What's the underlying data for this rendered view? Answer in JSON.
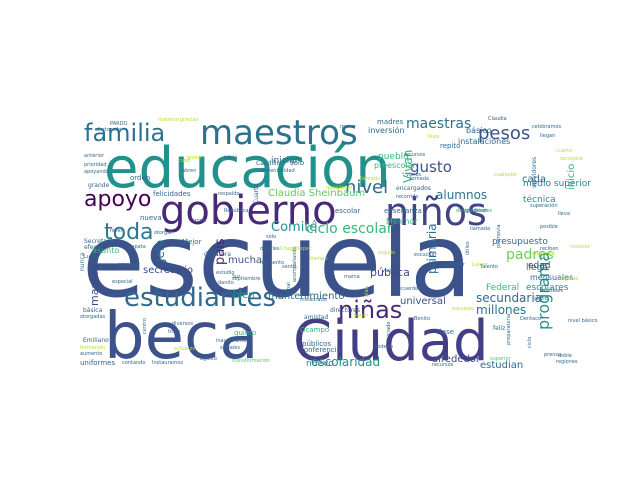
{
  "colors": {
    "background": "#ffffff",
    "palette": [
      "#440154",
      "#482878",
      "#3e4989",
      "#31688e",
      "#26828e",
      "#1f9e89",
      "#35b779",
      "#6ece58",
      "#b5de2b",
      "#fde725"
    ]
  },
  "words": [
    {
      "text": "escuela",
      "color": "#3b528b"
    },
    {
      "text": "educación",
      "color": "#21918c"
    },
    {
      "text": "beca",
      "color": "#3b528b"
    },
    {
      "text": "Ciudad",
      "color": "#433e85"
    },
    {
      "text": "maestros",
      "color": "#2c728e"
    },
    {
      "text": "gobierno",
      "color": "#482878"
    },
    {
      "text": "niños",
      "color": "#414487"
    },
    {
      "text": "estudiantes",
      "color": "#31688e"
    },
    {
      "text": "familia",
      "color": "#2c728e"
    },
    {
      "text": "apoyo",
      "color": "#440154"
    },
    {
      "text": "toda",
      "color": "#2a788e"
    },
    {
      "text": "niñas",
      "color": "#482878"
    },
    {
      "text": "pesos",
      "color": "#3b528b"
    },
    {
      "text": "maestras",
      "color": "#2c728e"
    },
    {
      "text": "nivel",
      "color": "#31688e"
    },
    {
      "text": "gusto",
      "color": "#3b528b"
    },
    {
      "text": "Comité",
      "color": "#21918c"
    },
    {
      "text": "ciclo escolar",
      "color": "#35b779"
    },
    {
      "text": "padres",
      "color": "#6ece58"
    },
    {
      "text": "secundaria",
      "color": "#31688e"
    },
    {
      "text": "programa",
      "color": "#21918c"
    },
    {
      "text": "millones",
      "color": "#2c728e"
    },
    {
      "text": "escolaridad",
      "color": "#21918c"
    },
    {
      "text": "estudian",
      "color": "#31688e"
    },
    {
      "text": "universal",
      "color": "#3b528b"
    },
    {
      "text": "mantenimiento",
      "color": "#31688e"
    },
    {
      "text": "secretario",
      "color": "#3e4989"
    },
    {
      "text": "país",
      "color": "#482878"
    },
    {
      "text": "pública",
      "color": "#414487"
    },
    {
      "text": "primaria",
      "color": "#31688e"
    },
    {
      "text": "alumnos",
      "color": "#2c728e"
    },
    {
      "text": "Vivan",
      "color": "#35b779"
    },
    {
      "text": "Claudia Sheinbaum",
      "color": "#5ec962"
    },
    {
      "text": "bien",
      "color": "#21918c"
    },
    {
      "text": "muchas",
      "color": "#3b528b"
    },
    {
      "text": "manera",
      "color": "#3e4989"
    },
    {
      "text": "Jefa",
      "color": "#31688e"
    },
    {
      "text": "inicio",
      "color": "#35b779"
    },
    {
      "text": "cada",
      "color": "#31688e"
    },
    {
      "text": "técnica",
      "color": "#21918c"
    },
    {
      "text": "medio superior",
      "color": "#26828e"
    },
    {
      "text": "nuevo",
      "color": "#26828e"
    },
    {
      "text": "alrededor",
      "color": "#3e4989"
    },
    {
      "text": "iniciar",
      "color": "#31688e"
    },
    {
      "text": "pueblo",
      "color": "#35b779"
    },
    {
      "text": "presupuesto",
      "color": "#31688e"
    },
    {
      "text": "llega",
      "color": "#31688e"
    },
    {
      "text": "edad",
      "color": "#3e4989"
    },
    {
      "text": "escolares",
      "color": "#21918c"
    },
    {
      "text": "Federal",
      "color": "#35b779"
    },
    {
      "text": "mensuales",
      "color": "#31688e"
    },
    {
      "text": "instalaciones",
      "color": "#31688e"
    },
    {
      "text": "inversión",
      "color": "#31688e"
    },
    {
      "text": "preescolar",
      "color": "#35b779"
    },
    {
      "text": "básico",
      "color": "#31688e"
    },
    {
      "text": "repito",
      "color": "#31688e"
    },
    {
      "text": "solo",
      "color": "#31688e"
    },
    {
      "text": "madres",
      "color": "#31688e"
    },
    {
      "text": "Melchor",
      "color": "#35b779"
    },
    {
      "text": "enseñanza",
      "color": "#31688e"
    },
    {
      "text": "escolar",
      "color": "#31688e"
    },
    {
      "text": "orden",
      "color": "#31688e"
    },
    {
      "text": "felicidades",
      "color": "#31688e"
    },
    {
      "text": "asunto",
      "color": "#35b779"
    },
    {
      "text": "nueva",
      "color": "#31688e"
    },
    {
      "text": "Ocampo",
      "color": "#35b779"
    },
    {
      "text": "públicos",
      "color": "#31688e"
    },
    {
      "text": "conferencia",
      "color": "#31688e"
    },
    {
      "text": "amistad",
      "color": "#31688e"
    },
    {
      "text": "directores",
      "color": "#31688e"
    },
    {
      "text": "clase",
      "color": "#31688e"
    },
    {
      "text": "feliz",
      "color": "#31688e"
    },
    {
      "text": "quiero",
      "color": "#35b779"
    },
    {
      "text": "uniformes",
      "color": "#31688e"
    },
    {
      "text": "Mejor",
      "color": "#31688e"
    },
    {
      "text": "directora",
      "color": "#31688e"
    },
    {
      "text": "Secretaría",
      "color": "#31688e"
    },
    {
      "text": "Emiliano",
      "color": "#31688e"
    },
    {
      "text": "Zapata",
      "color": "#31688e"
    },
    {
      "text": "efecto",
      "color": "#31688e"
    },
    {
      "text": "nunca",
      "color": "#31688e"
    },
    {
      "text": "Lunes",
      "color": "#31688e"
    },
    {
      "text": "especial",
      "color": "#31688e"
    },
    {
      "text": "básica",
      "color": "#31688e"
    },
    {
      "text": "Instauramos",
      "color": "#31688e"
    },
    {
      "text": "contando",
      "color": "#31688e"
    },
    {
      "text": "agosto",
      "color": "#31688e"
    },
    {
      "text": "transformación",
      "color": "#5ec962"
    },
    {
      "text": "trata",
      "color": "#31688e"
    },
    {
      "text": "centro",
      "color": "#31688e"
    },
    {
      "text": "diversos",
      "color": "#31688e"
    },
    {
      "text": "inauguramos",
      "color": "#31688e"
    },
    {
      "text": "sociales",
      "color": "#31688e"
    },
    {
      "text": "otorgar",
      "color": "#31688e"
    },
    {
      "text": "recursos",
      "color": "#31688e"
    },
    {
      "text": "superior",
      "color": "#5ec962"
    },
    {
      "text": "regiones",
      "color": "#31688e"
    },
    {
      "text": "doble",
      "color": "#31688e"
    },
    {
      "text": "preparatoria",
      "color": "#31688e"
    },
    {
      "text": "ciclo",
      "color": "#31688e"
    },
    {
      "text": "útiles",
      "color": "#31688e"
    },
    {
      "text": "vivan",
      "color": "#31688e"
    },
    {
      "text": "poderlo",
      "color": "#31688e"
    },
    {
      "text": "Caudillo",
      "color": "#31688e"
    },
    {
      "text": "Cuarta",
      "color": "#31688e"
    },
    {
      "text": "encargados",
      "color": "#31688e"
    },
    {
      "text": "empezar",
      "color": "#31688e"
    },
    {
      "text": "PARDO",
      "color": "#31688e"
    },
    {
      "text": "doctorado",
      "color": "#31688e"
    },
    {
      "text": "anterior",
      "color": "#31688e"
    },
    {
      "text": "prioridad",
      "color": "#31688e"
    },
    {
      "text": "apoyando",
      "color": "#31688e"
    },
    {
      "text": "grande",
      "color": "#31688e"
    },
    {
      "text": "celebramos",
      "color": "#31688e"
    },
    {
      "text": "Claudia",
      "color": "#31688e"
    },
    {
      "text": "servidores",
      "color": "#31688e"
    },
    {
      "text": "llamada",
      "color": "#31688e"
    },
    {
      "text": "estatales",
      "color": "#31688e"
    },
    {
      "text": "obvio",
      "color": "#31688e"
    },
    {
      "text": "prensa",
      "color": "#31688e"
    },
    {
      "text": "recuerden",
      "color": "#31688e"
    },
    {
      "text": "Talento",
      "color": "#31688e"
    },
    {
      "text": "material",
      "color": "#b5de2b"
    },
    {
      "text": "gracias",
      "color": "#b5de2b"
    },
    {
      "text": "menor",
      "color": "#31688e"
    },
    {
      "text": "respaldo",
      "color": "#31688e"
    },
    {
      "text": "inició",
      "color": "#31688e"
    },
    {
      "text": "gusto",
      "color": "#b5de2b"
    },
    {
      "text": "cubo",
      "color": "#b5de2b"
    },
    {
      "text": "abren",
      "color": "#31688e"
    },
    {
      "text": "varios",
      "color": "#31688e"
    },
    {
      "text": "sólo",
      "color": "#31688e"
    },
    {
      "text": "decirles",
      "color": "#31688e"
    },
    {
      "text": "momento",
      "color": "#31688e"
    },
    {
      "text": "final",
      "color": "#31688e"
    },
    {
      "text": "sentir",
      "color": "#31688e"
    },
    {
      "text": "Sur",
      "color": "#31688e"
    },
    {
      "text": "septiembre",
      "color": "#31688e"
    },
    {
      "text": "dando",
      "color": "#31688e"
    },
    {
      "text": "acompañando",
      "color": "#31688e"
    },
    {
      "text": "instaurado",
      "color": "#31688e"
    },
    {
      "text": "iniciado",
      "color": "#31688e"
    },
    {
      "text": "otorgadas",
      "color": "#31688e"
    },
    {
      "text": "aumento",
      "color": "#31688e"
    },
    {
      "text": "formación",
      "color": "#b5de2b"
    },
    {
      "text": "República",
      "color": "#31688e"
    },
    {
      "text": "Chapultepec",
      "color": "#b5de2b"
    },
    {
      "text": "orgullo",
      "color": "#b5de2b"
    },
    {
      "text": "promovía",
      "color": "#31688e"
    },
    {
      "text": "estudio",
      "color": "#31688e"
    },
    {
      "text": "evitar",
      "color": "#b5de2b"
    },
    {
      "text": "plan",
      "color": "#b5de2b"
    },
    {
      "text": "sostenibilidad",
      "color": "#31688e"
    },
    {
      "text": "mencionar",
      "color": "#b5de2b"
    },
    {
      "text": "esfuerzo",
      "color": "#b5de2b"
    },
    {
      "text": "nivel",
      "color": "#31688e"
    },
    {
      "text": "llegan",
      "color": "#31688e"
    },
    {
      "text": "hijos",
      "color": "#b5de2b"
    },
    {
      "text": "cuarto",
      "color": "#b5de2b"
    },
    {
      "text": "recorrido",
      "color": "#31688e"
    },
    {
      "text": "Benito",
      "color": "#31688e"
    },
    {
      "text": "Juárez",
      "color": "#b5de2b"
    },
    {
      "text": "nivel básico",
      "color": "#31688e"
    },
    {
      "text": "aprender",
      "color": "#31688e"
    },
    {
      "text": "desigualdades",
      "color": "#35b779"
    },
    {
      "text": "superación",
      "color": "#31688e"
    },
    {
      "text": "conocer",
      "color": "#b5de2b"
    },
    {
      "text": "reconoce",
      "color": "#b5de2b"
    },
    {
      "text": "reciben",
      "color": "#31688e"
    },
    {
      "text": "ingreso",
      "color": "#b5de2b"
    },
    {
      "text": "recursos",
      "color": "#31688e"
    },
    {
      "text": "agradecer",
      "color": "#31688e"
    },
    {
      "text": "zona",
      "color": "#31688e"
    },
    {
      "text": "encuesta",
      "color": "#b5de2b"
    },
    {
      "text": "posible",
      "color": "#31688e"
    },
    {
      "text": "tiempo",
      "color": "#b5de2b"
    },
    {
      "text": "escuchar",
      "color": "#31688e"
    },
    {
      "text": "escuelas",
      "color": "#b5de2b"
    },
    {
      "text": "Dentaco",
      "color": "#31688e"
    },
    {
      "text": "Jornada",
      "color": "#31688e"
    },
    {
      "text": "lleva",
      "color": "#31688e"
    },
    {
      "text": "marca",
      "color": "#31688e"
    },
    {
      "text": "llamado",
      "color": "#b5de2b"
    },
    {
      "text": "cualquier",
      "color": "#b5de2b"
    }
  ]
}
